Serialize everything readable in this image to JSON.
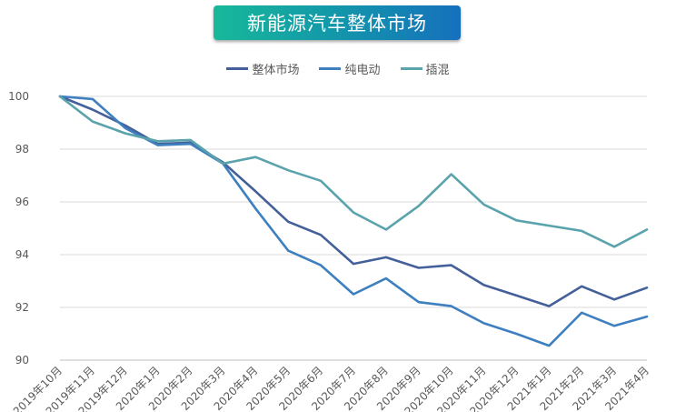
{
  "title": "新能源汽车整体市场",
  "colors": {
    "title_gradient": [
      "#18b89a",
      "#1670bd"
    ],
    "grid": "#d9d9d9",
    "axis_text": "#595959"
  },
  "chart_data": {
    "type": "line",
    "title": "新能源汽车整体市场",
    "xlabel": "",
    "ylabel": "",
    "categories": [
      "2019年10月",
      "2019年11月",
      "2019年12月",
      "2020年1月",
      "2020年2月",
      "2020年3月",
      "2020年4月",
      "2020年5月",
      "2020年6月",
      "2020年7月",
      "2020年8月",
      "2020年9月",
      "2020年10月",
      "2020年11月",
      "2020年12月",
      "2021年1月",
      "2021年2月",
      "2021年3月",
      "2021年4月"
    ],
    "ylim": [
      90,
      100
    ],
    "yticks": [
      90,
      92,
      94,
      96,
      98,
      100
    ],
    "grid": true,
    "legend_position": "top-center",
    "series": [
      {
        "name": "整体市场",
        "color": "#44609a",
        "values": [
          100,
          99.5,
          98.9,
          98.2,
          98.25,
          97.5,
          96.4,
          95.25,
          94.75,
          93.65,
          93.9,
          93.5,
          93.6,
          92.85,
          92.45,
          92.05,
          92.8,
          92.3,
          92.75
        ]
      },
      {
        "name": "纯电动",
        "color": "#3d7fbf",
        "values": [
          100,
          99.9,
          98.8,
          98.15,
          98.2,
          97.45,
          95.75,
          94.15,
          93.6,
          92.5,
          93.1,
          92.2,
          92.05,
          91.4,
          91.0,
          90.55,
          91.8,
          91.3,
          91.65
        ]
      },
      {
        "name": "插混",
        "color": "#5aa3ac",
        "values": [
          100,
          99.05,
          98.6,
          98.3,
          98.35,
          97.45,
          97.7,
          97.2,
          96.8,
          95.6,
          94.95,
          95.85,
          97.05,
          95.9,
          95.3,
          95.1,
          94.9,
          94.3,
          94.95
        ]
      }
    ]
  }
}
